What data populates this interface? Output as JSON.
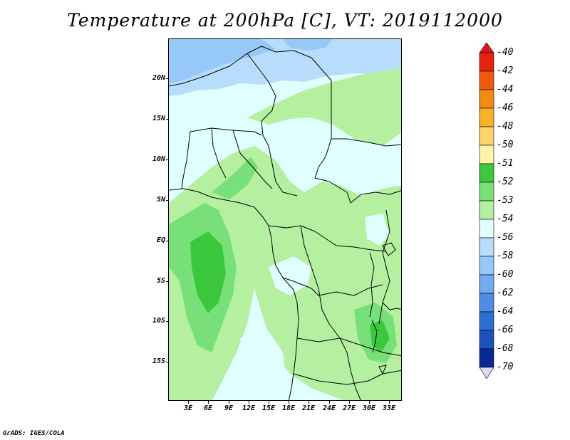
{
  "title": "Temperature at 200hPa [C], VT: 2019112000",
  "footer": "GrADS: IGES/COLA",
  "lat_labels": [
    "20N",
    "15N",
    "10N",
    "5N",
    "EQ",
    "5S",
    "10S",
    "15S"
  ],
  "lon_labels": [
    "3E",
    "6E",
    "9E",
    "12E",
    "15E",
    "18E",
    "21E",
    "24E",
    "27E",
    "30E",
    "33E"
  ],
  "legend": {
    "labels": [
      "-40",
      "-42",
      "-44",
      "-46",
      "-48",
      "-50",
      "-51",
      "-52",
      "-53",
      "-54",
      "-56",
      "-58",
      "-60",
      "-62",
      "-64",
      "-66",
      "-68",
      "-70"
    ],
    "colors": [
      "#e62210",
      "#f05a0f",
      "#f48a14",
      "#f8b12a",
      "#fcd36a",
      "#fef3a8",
      "#3cc83c",
      "#78e078",
      "#b4f0a0",
      "#e0ffff",
      "#b8dcfc",
      "#96c8f8",
      "#73aaf0",
      "#508ce6",
      "#2d6ed2",
      "#1e50be",
      "#0a2896",
      "#0a0a64"
    ],
    "top_arrow_color": "#d7171c",
    "bottom_arrow_color": "#e0d8f0"
  },
  "field_colors": {
    "cold_56": "#b8dcfc",
    "cold_58": "#96c8f8",
    "base_54": "#e0ffff",
    "warm_53": "#b4f0a0",
    "warm_52": "#78e078",
    "warm_51": "#3cc83c"
  }
}
